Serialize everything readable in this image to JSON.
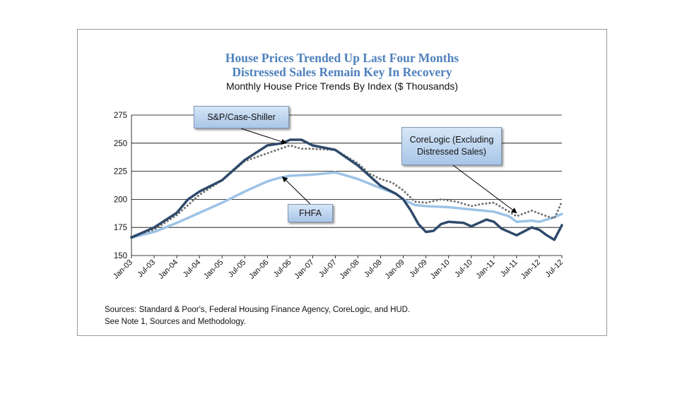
{
  "chart_data": {
    "type": "line",
    "title": "House Prices Trended Up Last Four Months",
    "title_line2": "Distressed Sales Remain Key In Recovery",
    "subtitle": "Monthly House Price Trends By Index ($ Thousands)",
    "ylim": [
      150,
      275
    ],
    "yticks": [
      150,
      175,
      200,
      225,
      250,
      275
    ],
    "xlim": [
      0,
      114
    ],
    "xticks": [
      "Jan-03",
      "Jul-03",
      "Jan-04",
      "Jul-04",
      "Jan-05",
      "Jul-05",
      "Jan-06",
      "Jul-06",
      "Jan-07",
      "Jul-07",
      "Jan-08",
      "Jul-08",
      "Jan-09",
      "Jul-09",
      "Jan-10",
      "Jul-10",
      "Jan-11",
      "Jul-11",
      "Jan-12",
      "Jul-12"
    ],
    "grid": "horizontal",
    "series": [
      {
        "name": "FHFA",
        "color": "#9cc3e6",
        "style": "solid-thick",
        "points": [
          [
            0,
            166
          ],
          [
            6,
            171
          ],
          [
            12,
            179
          ],
          [
            18,
            188
          ],
          [
            24,
            197
          ],
          [
            30,
            207
          ],
          [
            36,
            216
          ],
          [
            39,
            219
          ],
          [
            42,
            221
          ],
          [
            48,
            222
          ],
          [
            54,
            224
          ],
          [
            60,
            218
          ],
          [
            66,
            210
          ],
          [
            70,
            205
          ],
          [
            72,
            200
          ],
          [
            75,
            195
          ],
          [
            78,
            194
          ],
          [
            84,
            193
          ],
          [
            90,
            191
          ],
          [
            96,
            189
          ],
          [
            100,
            185
          ],
          [
            102,
            180
          ],
          [
            106,
            181
          ],
          [
            108,
            180
          ],
          [
            111,
            183
          ],
          [
            114,
            187
          ]
        ]
      },
      {
        "name": "S&P/Case-Shiller",
        "color": "#2e4a6b",
        "style": "solid-thick",
        "points": [
          [
            0,
            166
          ],
          [
            6,
            175
          ],
          [
            12,
            188
          ],
          [
            15,
            200
          ],
          [
            18,
            207
          ],
          [
            24,
            217
          ],
          [
            30,
            235
          ],
          [
            36,
            248
          ],
          [
            40,
            250
          ],
          [
            42,
            253
          ],
          [
            45,
            253
          ],
          [
            48,
            248
          ],
          [
            54,
            244
          ],
          [
            60,
            230
          ],
          [
            66,
            212
          ],
          [
            70,
            205
          ],
          [
            72,
            200
          ],
          [
            74,
            190
          ],
          [
            76,
            178
          ],
          [
            78,
            171
          ],
          [
            80,
            172
          ],
          [
            82,
            178
          ],
          [
            84,
            180
          ],
          [
            88,
            179
          ],
          [
            90,
            176
          ],
          [
            92,
            179
          ],
          [
            94,
            182
          ],
          [
            96,
            180
          ],
          [
            98,
            174
          ],
          [
            102,
            168
          ],
          [
            106,
            175
          ],
          [
            108,
            173
          ],
          [
            110,
            168
          ],
          [
            112,
            164
          ],
          [
            114,
            177
          ]
        ]
      },
      {
        "name": "CoreLogic (Excluding Distressed Sales)",
        "color": "#707070",
        "style": "dotted",
        "points": [
          [
            0,
            167
          ],
          [
            6,
            173
          ],
          [
            12,
            186
          ],
          [
            18,
            204
          ],
          [
            24,
            217
          ],
          [
            30,
            234
          ],
          [
            36,
            241
          ],
          [
            42,
            248
          ],
          [
            45,
            245
          ],
          [
            48,
            245
          ],
          [
            54,
            244
          ],
          [
            57,
            238
          ],
          [
            60,
            232
          ],
          [
            63,
            223
          ],
          [
            66,
            218
          ],
          [
            69,
            215
          ],
          [
            72,
            208
          ],
          [
            75,
            198
          ],
          [
            78,
            197
          ],
          [
            82,
            200
          ],
          [
            86,
            198
          ],
          [
            90,
            194
          ],
          [
            93,
            196
          ],
          [
            96,
            197
          ],
          [
            102,
            185
          ],
          [
            106,
            190
          ],
          [
            110,
            185
          ],
          [
            112,
            183
          ],
          [
            114,
            198
          ]
        ]
      }
    ],
    "annotations": [
      {
        "label": "S&P/Case-Shiller",
        "points_to": [
          41,
          250
        ]
      },
      {
        "label": "CoreLogic (Excluding Distressed Sales)",
        "points_to": [
          102,
          188
        ]
      },
      {
        "label": "FHFA",
        "points_to": [
          40,
          220
        ]
      }
    ]
  },
  "callouts": {
    "sp": "S&P/Case-Shiller",
    "corelogic": "CoreLogic (Excluding Distressed Sales)",
    "fhfa": "FHFA"
  },
  "sources": {
    "line1": "Sources:  Standard & Poor's, Federal Housing Finance Agency, CoreLogic, and HUD.",
    "line2": "See Note 1, Sources and Methodology."
  }
}
